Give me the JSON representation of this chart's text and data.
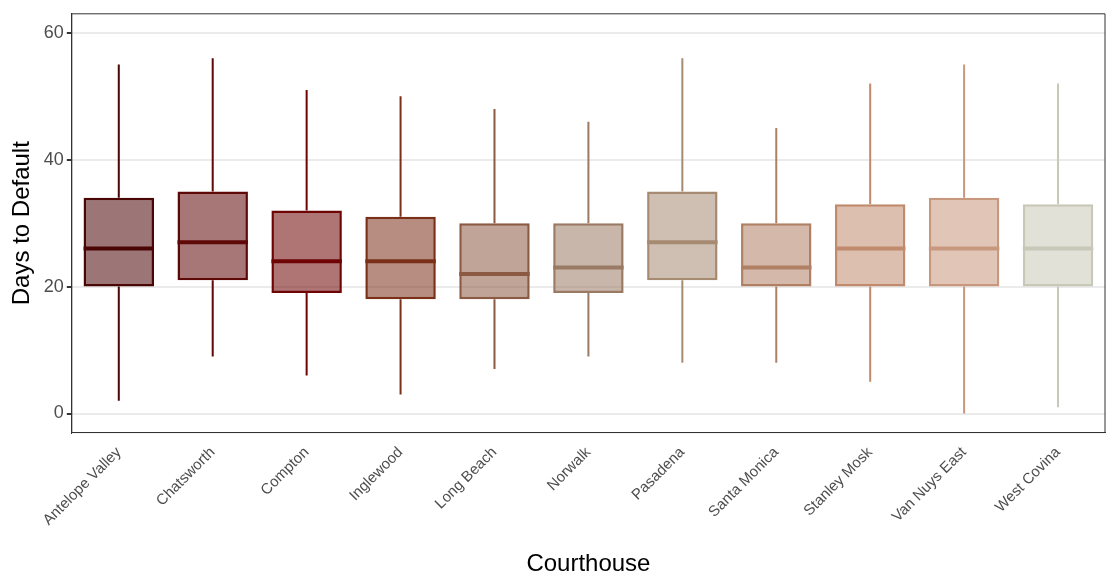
{
  "chart_data": {
    "type": "box",
    "xlabel": "Courthouse",
    "ylabel": "Days to Default",
    "categories": [
      "Antelope Valley",
      "Chatsworth",
      "Compton",
      "Inglewood",
      "Long Beach",
      "Norwalk",
      "Pasadena",
      "Santa Monica",
      "Stanley Mosk",
      "Van Nuys East",
      "West Covina"
    ],
    "colors": [
      "#4a0505",
      "#5e0808",
      "#6e0404",
      "#7a3018",
      "#8c5a42",
      "#9a7a64",
      "#a68a72",
      "#b08064",
      "#c08a6c",
      "#c8987e",
      "#c8c8b8"
    ],
    "boxes": [
      {
        "low": 2,
        "q1": 20,
        "median": 26,
        "q3": 34,
        "high": 55
      },
      {
        "low": 9,
        "q1": 21,
        "median": 27,
        "q3": 35,
        "high": 56
      },
      {
        "low": 6,
        "q1": 19,
        "median": 24,
        "q3": 32,
        "high": 51
      },
      {
        "low": 3,
        "q1": 18,
        "median": 24,
        "q3": 31,
        "high": 50
      },
      {
        "low": 7,
        "q1": 18,
        "median": 22,
        "q3": 30,
        "high": 48
      },
      {
        "low": 9,
        "q1": 19,
        "median": 23,
        "q3": 30,
        "high": 46
      },
      {
        "low": 8,
        "q1": 21,
        "median": 27,
        "q3": 35,
        "high": 56
      },
      {
        "low": 8,
        "q1": 20,
        "median": 23,
        "q3": 30,
        "high": 45
      },
      {
        "low": 5,
        "q1": 20,
        "median": 26,
        "q3": 33,
        "high": 52
      },
      {
        "low": 0,
        "q1": 20,
        "median": 26,
        "q3": 34,
        "high": 55
      },
      {
        "low": 1,
        "q1": 20,
        "median": 26,
        "q3": 33,
        "high": 52
      }
    ],
    "ylim": [
      -3,
      63
    ],
    "yticks": [
      0,
      20,
      40,
      60
    ],
    "grid": "y",
    "legend": false
  }
}
